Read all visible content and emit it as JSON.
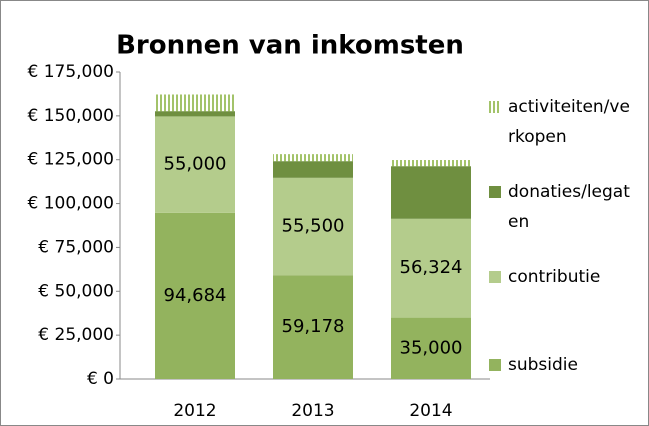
{
  "chart_data": {
    "type": "stacked_bar",
    "title": "Bronnen van inkomsten",
    "categories": [
      "2012",
      "2013",
      "2014"
    ],
    "series": [
      {
        "name": "subsidie",
        "color": "#93b35e",
        "values": [
          94684,
          59178,
          35000
        ],
        "value_labels": [
          "94,684",
          "59,178",
          "35,000"
        ]
      },
      {
        "name": "contributie",
        "color": "#b4cc8c",
        "values": [
          55000,
          55500,
          56324
        ],
        "value_labels": [
          "55,000",
          "55,500",
          "56,324"
        ]
      },
      {
        "name": "donaties/legaten",
        "color": "#6f8f40",
        "values": [
          3000,
          9500,
          30000
        ]
      },
      {
        "name": "activiteiten/verkopen",
        "color": "#a3c36a",
        "values": [
          9500,
          4000,
          3500
        ]
      }
    ],
    "ylim": [
      0,
      175000
    ],
    "yticks": [
      {
        "value": 0,
        "label": "€ 0"
      },
      {
        "value": 25000,
        "label": "€ 25,000"
      },
      {
        "value": 50000,
        "label": "€ 50,000"
      },
      {
        "value": 75000,
        "label": "€ 75,000"
      },
      {
        "value": 100000,
        "label": "€ 100,000"
      },
      {
        "value": 125000,
        "label": "€ 125,000"
      },
      {
        "value": 150000,
        "label": "€ 150,000"
      },
      {
        "value": 175000,
        "label": "€ 175,000"
      }
    ],
    "legend": "right"
  }
}
